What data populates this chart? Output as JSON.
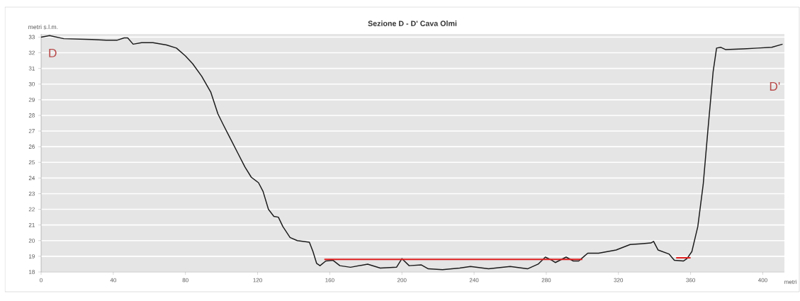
{
  "chart_data": {
    "type": "line",
    "title": "Sezione D - D' Cava Olmi",
    "xlabel": "metri",
    "ylabel": "metri s.l.m.",
    "xlim": [
      0,
      412
    ],
    "ylim": [
      18,
      33.2
    ],
    "xticks": [
      0,
      40,
      80,
      120,
      160,
      200,
      240,
      280,
      320,
      360,
      400
    ],
    "yticks": [
      18,
      19,
      20,
      21,
      22,
      23,
      24,
      25,
      26,
      27,
      28,
      29,
      30,
      31,
      32,
      33
    ],
    "grid": "y",
    "marker": "none",
    "line_style": "solid",
    "annotations": [
      "D",
      "D'"
    ],
    "series": [
      {
        "color": "#1a1a1a",
        "x": [
          0,
          4.7,
          12.6,
          28,
          36,
          42,
          46,
          48,
          51,
          55.7,
          62,
          69.5,
          75,
          80,
          84,
          89,
          94,
          98,
          101,
          105,
          109,
          113,
          116.5,
          120.5,
          123,
          126,
          129,
          131.5,
          134,
          138,
          142,
          148.7,
          150.7,
          152.7,
          154.6,
          157.8,
          161.7,
          165.6,
          171.5,
          181,
          188,
          197,
          200,
          204,
          210.8,
          214.6,
          222.5,
          232,
          238,
          248,
          260,
          269.6,
          275.5,
          279.5,
          283,
          285,
          291,
          295,
          298,
          301,
          303,
          309,
          318.7,
          326.5,
          332.4,
          338,
          339.5,
          342,
          348,
          351,
          356,
          358,
          360.7,
          364,
          367,
          369.7,
          372.5,
          374.4,
          376.8,
          379.5,
          389.3,
          397.2,
          405,
          411
        ],
        "values": [
          33.0,
          33.1,
          32.9,
          32.85,
          32.8,
          32.8,
          32.95,
          32.95,
          32.55,
          32.65,
          32.65,
          32.5,
          32.3,
          31.8,
          31.3,
          30.5,
          29.5,
          28.1,
          27.4,
          26.5,
          25.6,
          24.7,
          24.05,
          23.7,
          23.15,
          22.0,
          21.55,
          21.5,
          20.9,
          20.2,
          20.0,
          19.9,
          19.3,
          18.55,
          18.4,
          18.7,
          18.75,
          18.4,
          18.3,
          18.5,
          18.25,
          18.3,
          18.85,
          18.4,
          18.45,
          18.2,
          18.15,
          18.25,
          18.35,
          18.2,
          18.35,
          18.2,
          18.5,
          18.95,
          18.75,
          18.6,
          18.95,
          18.7,
          18.7,
          19.0,
          19.2,
          19.2,
          19.4,
          19.75,
          19.8,
          19.85,
          19.95,
          19.4,
          19.15,
          18.75,
          18.7,
          18.85,
          19.3,
          20.9,
          23.6,
          27.2,
          30.8,
          32.3,
          32.35,
          32.2,
          32.25,
          32.3,
          32.35,
          32.55
        ]
      },
      {
        "color": "#e02020",
        "x": [
          157,
          300,
          326,
          352,
          360
        ],
        "values": [
          18.8,
          18.8,
          null,
          18.9,
          18.9
        ]
      }
    ]
  }
}
